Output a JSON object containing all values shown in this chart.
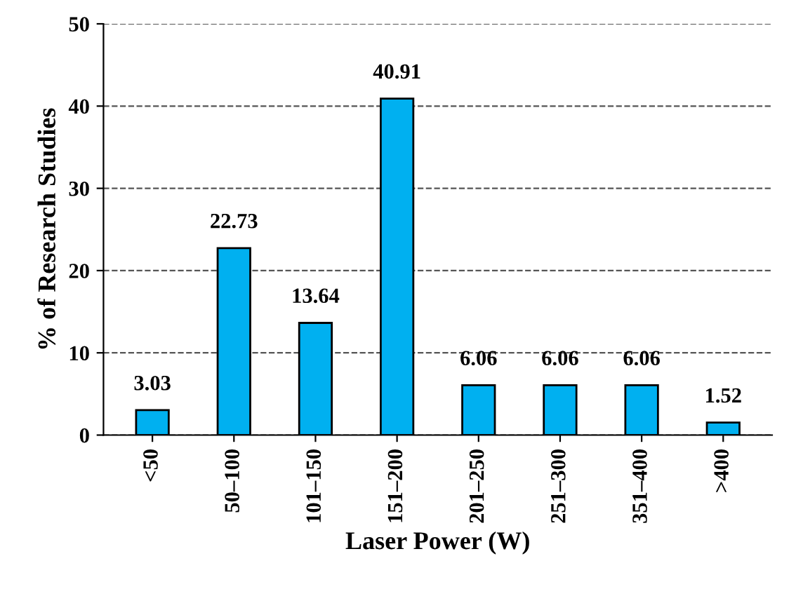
{
  "chart_data": {
    "type": "bar",
    "xlabel": "Laser Power (W)",
    "ylabel": "% of Research Studies",
    "categories": [
      "<50",
      "50–100",
      "101–150",
      "151–200",
      "201–250",
      "251–300",
      "351–400",
      ">400"
    ],
    "values": [
      3.03,
      22.73,
      13.64,
      40.91,
      6.06,
      6.06,
      6.06,
      1.52
    ],
    "color": "#00b0f0",
    "ylim": [
      0,
      50
    ],
    "yticks": [
      0,
      10,
      20,
      30,
      40,
      50
    ],
    "grid": "y",
    "data_labels": true
  }
}
